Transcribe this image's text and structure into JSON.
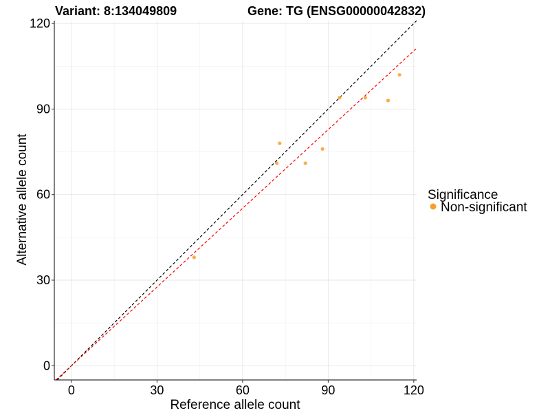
{
  "chart_data": {
    "type": "scatter",
    "title_left": "Variant: 8:134049809",
    "title_right": "Gene: TG (ENSG00000042832)",
    "xlabel": "Reference allele count",
    "ylabel": "Alternative allele count",
    "xlim": [
      -6,
      121
    ],
    "ylim": [
      -5,
      121
    ],
    "xticks": [
      0,
      30,
      60,
      90,
      120
    ],
    "yticks": [
      0,
      30,
      60,
      90,
      120
    ],
    "x_minor": [
      15,
      45,
      75,
      105
    ],
    "y_minor": [
      15,
      45,
      75,
      105
    ],
    "grid": true,
    "legend": {
      "title": "Significance",
      "position": "right",
      "entries": [
        {
          "label": "Non-significant",
          "color": "#f5a02a"
        }
      ]
    },
    "reference_lines": [
      {
        "name": "identity-line",
        "slope": 1.0,
        "intercept": 0,
        "color": "#000000",
        "style": "dashed"
      },
      {
        "name": "fit-line",
        "slope": 0.92,
        "intercept": 0,
        "color": "#ff0000",
        "style": "dashed"
      }
    ],
    "points_color": "#f5a02a",
    "points": [
      {
        "x": 43,
        "y": 38
      },
      {
        "x": 72,
        "y": 71
      },
      {
        "x": 73,
        "y": 78
      },
      {
        "x": 82,
        "y": 71
      },
      {
        "x": 88,
        "y": 76
      },
      {
        "x": 94,
        "y": 94
      },
      {
        "x": 103,
        "y": 94
      },
      {
        "x": 111,
        "y": 93
      },
      {
        "x": 115,
        "y": 102
      }
    ]
  }
}
